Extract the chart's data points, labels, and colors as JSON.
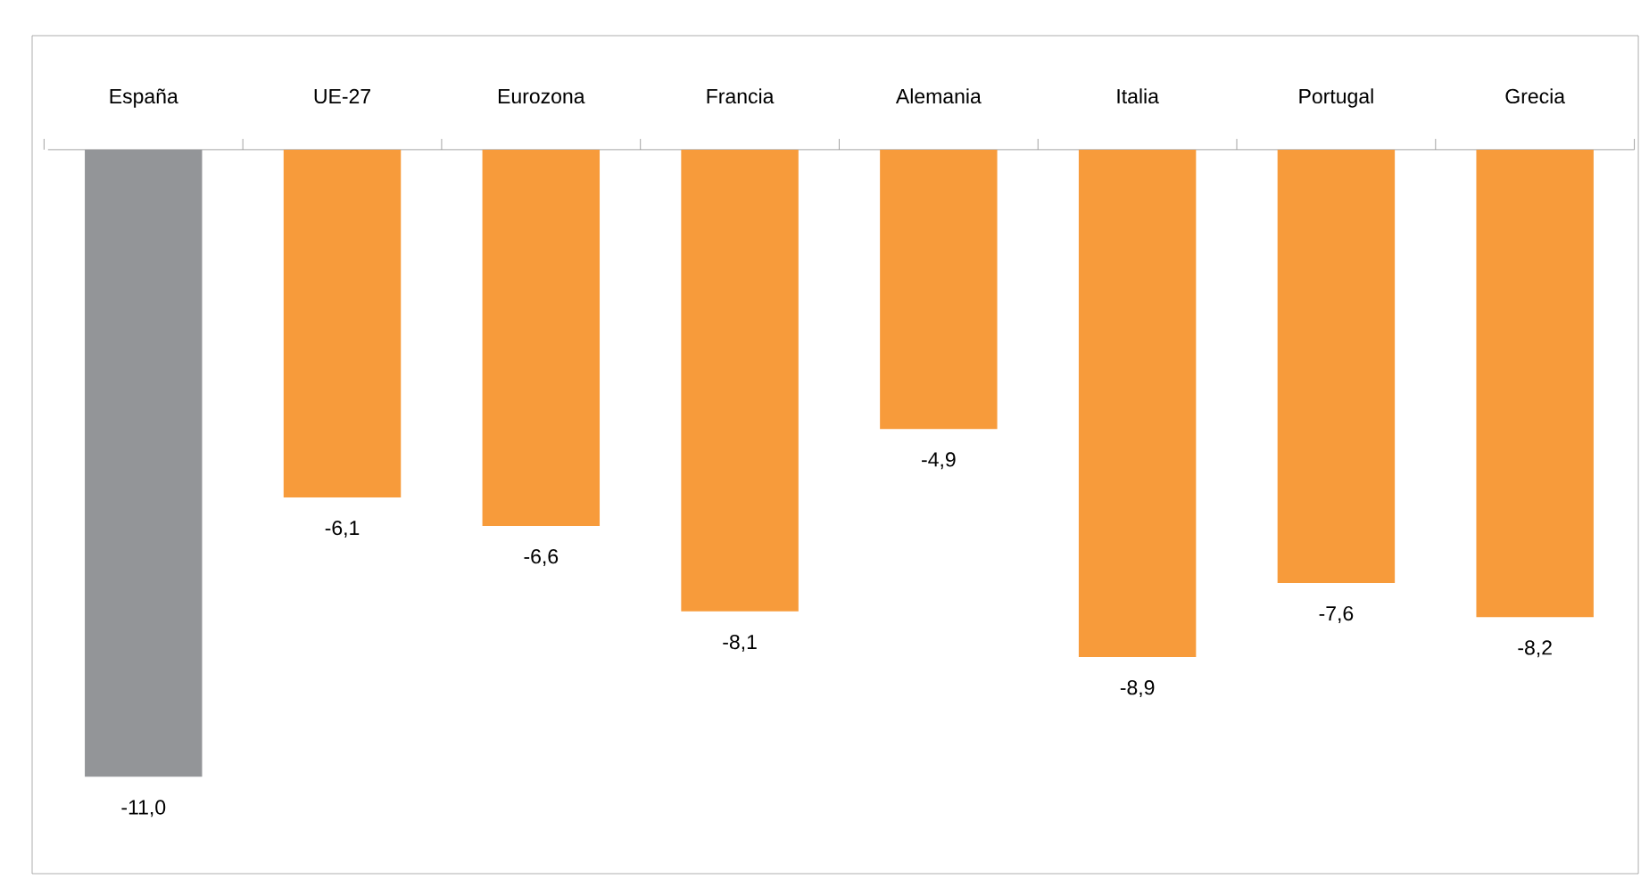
{
  "chart_data": {
    "type": "bar",
    "categories": [
      "España",
      "UE-27",
      "Eurozona",
      "Francia",
      "Alemania",
      "Italia",
      "Portugal",
      "Grecia"
    ],
    "values": [
      -11.0,
      -6.1,
      -6.6,
      -8.1,
      -4.9,
      -8.9,
      -7.6,
      -8.2
    ],
    "colors": [
      "#939598",
      "#f79b3b",
      "#f79b3b",
      "#f79b3b",
      "#f79b3b",
      "#f79b3b",
      "#f79b3b",
      "#f79b3b"
    ],
    "value_labels": [
      "-11,0",
      "-6,1",
      "-6,6",
      "-8,1",
      "-4,9",
      "-8,9",
      "-7,6",
      "-8,2"
    ],
    "ylim": [
      -12.7,
      2
    ]
  }
}
